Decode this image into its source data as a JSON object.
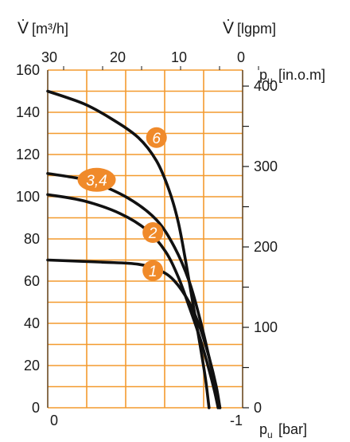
{
  "chart_data": {
    "type": "line",
    "title": "",
    "axes": {
      "left": {
        "label": "V̇ [m³/h]",
        "label_flow": "V̇",
        "label_unit": "[m³/h]",
        "ticks": [
          0,
          20,
          40,
          60,
          80,
          100,
          120,
          140,
          160
        ],
        "range": [
          0,
          160
        ]
      },
      "right": {
        "label": "pu [in.o.m]",
        "label_symbol": "p",
        "label_sub": "u",
        "label_unit": "[in.o.m]",
        "ticks": [
          0,
          100,
          200,
          300,
          400
        ],
        "range": [
          0,
          410
        ]
      },
      "top": {
        "labels_left": [
          "30",
          "20",
          "10",
          "0"
        ],
        "title": "V̇ [lgpm]",
        "title_flow": "V̇",
        "title_unit": "[lgpm]"
      },
      "bottom": {
        "label": "pu [bar]",
        "label_symbol": "p",
        "label_sub": "u",
        "label_unit": "[bar]",
        "ticks": [
          "0",
          "-1"
        ],
        "range": [
          0,
          -1
        ]
      }
    },
    "grid": true,
    "grid_color": "#f39a2e",
    "curve_color": "#111111",
    "marker_color": "#f08a2a",
    "series": [
      {
        "label": "1",
        "points": [
          [
            0,
            70
          ],
          [
            0.3,
            69
          ],
          [
            0.5,
            68
          ],
          [
            0.62,
            65
          ],
          [
            0.7,
            60
          ],
          [
            0.78,
            50
          ],
          [
            0.84,
            38
          ],
          [
            0.89,
            24
          ],
          [
            0.93,
            10
          ],
          [
            0.95,
            0
          ]
        ]
      },
      {
        "label": "2",
        "points": [
          [
            0,
            101
          ],
          [
            0.2,
            98
          ],
          [
            0.4,
            92
          ],
          [
            0.55,
            84
          ],
          [
            0.65,
            74
          ],
          [
            0.72,
            62
          ],
          [
            0.78,
            48
          ],
          [
            0.84,
            33
          ],
          [
            0.89,
            18
          ],
          [
            0.92,
            8
          ],
          [
            0.94,
            0
          ]
        ]
      },
      {
        "label": "3,4",
        "points": [
          [
            0,
            111
          ],
          [
            0.15,
            109
          ],
          [
            0.25,
            107
          ],
          [
            0.45,
            99
          ],
          [
            0.6,
            89
          ],
          [
            0.7,
            76
          ],
          [
            0.78,
            60
          ],
          [
            0.84,
            42
          ],
          [
            0.89,
            24
          ],
          [
            0.93,
            8
          ],
          [
            0.95,
            0
          ]
        ]
      },
      {
        "label": "6",
        "points": [
          [
            0,
            150
          ],
          [
            0.2,
            144
          ],
          [
            0.35,
            137
          ],
          [
            0.5,
            128
          ],
          [
            0.6,
            117
          ],
          [
            0.67,
            103
          ],
          [
            0.72,
            88
          ],
          [
            0.76,
            70
          ],
          [
            0.8,
            50
          ],
          [
            0.84,
            30
          ],
          [
            0.87,
            14
          ],
          [
            0.89,
            0
          ]
        ]
      }
    ]
  }
}
